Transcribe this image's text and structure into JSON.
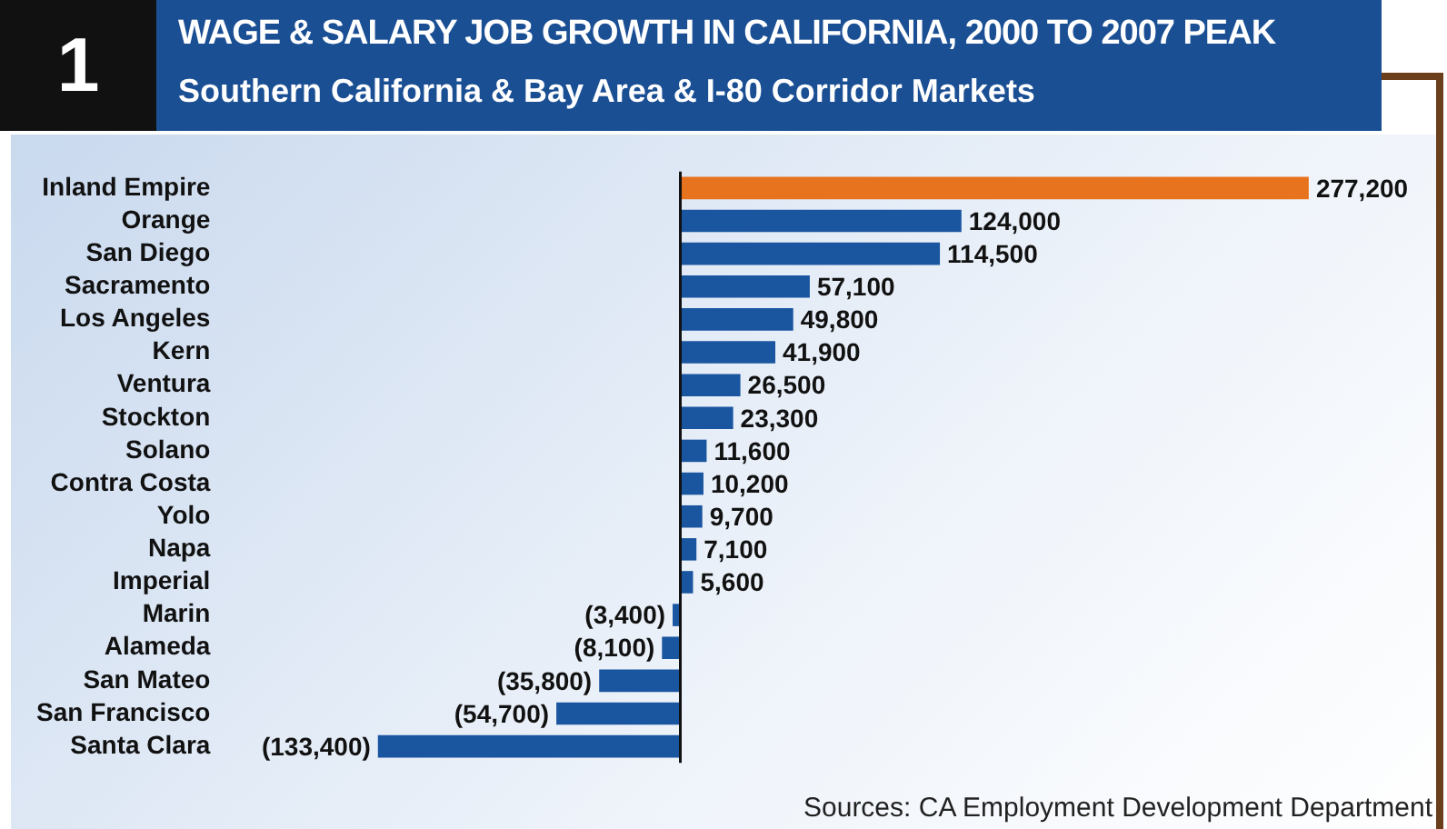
{
  "chart_data": {
    "type": "bar",
    "orientation": "horizontal",
    "title": "WAGE & SALARY JOB GROWTH IN CALIFORNIA, 2000 TO 2007 PEAK",
    "subtitle": "Southern California & Bay Area & I-80 Corridor Markets",
    "categories": [
      "Inland Empire",
      "Orange",
      "San Diego",
      "Sacramento",
      "Los Angeles",
      "Kern",
      "Ventura",
      "Stockton",
      "Solano",
      "Contra Costa",
      "Yolo",
      "Napa",
      "Imperial",
      "Marin",
      "Alameda",
      "San Mateo",
      "San Francisco",
      "Santa Clara"
    ],
    "values": [
      277200,
      124000,
      114500,
      57100,
      49800,
      41900,
      26500,
      23300,
      11600,
      10200,
      9700,
      7100,
      5600,
      -3400,
      -8100,
      -35800,
      -54700,
      -133400
    ],
    "value_labels": [
      "277,200",
      "124,000",
      "114,500",
      "57,100",
      "49,800",
      "41,900",
      "26,500",
      "23,300",
      "11,600",
      "10,200",
      "9,700",
      "7,100",
      "5,600",
      "(3,400)",
      "(8,100)",
      "(35,800)",
      "(54,700)",
      "(133,400)"
    ],
    "colors": [
      "#e8731e",
      "#1a55a0",
      "#1a55a0",
      "#1a55a0",
      "#1a55a0",
      "#1a55a0",
      "#1a55a0",
      "#1a55a0",
      "#1a55a0",
      "#1a55a0",
      "#1a55a0",
      "#1a55a0",
      "#1a55a0",
      "#1a55a0",
      "#1a55a0",
      "#1a55a0",
      "#1a55a0",
      "#1a55a0"
    ],
    "annotations": [
      "1",
      "Sources:  CA Employment Development Department"
    ],
    "tick_labels": "y",
    "grid": false,
    "legend": false
  }
}
